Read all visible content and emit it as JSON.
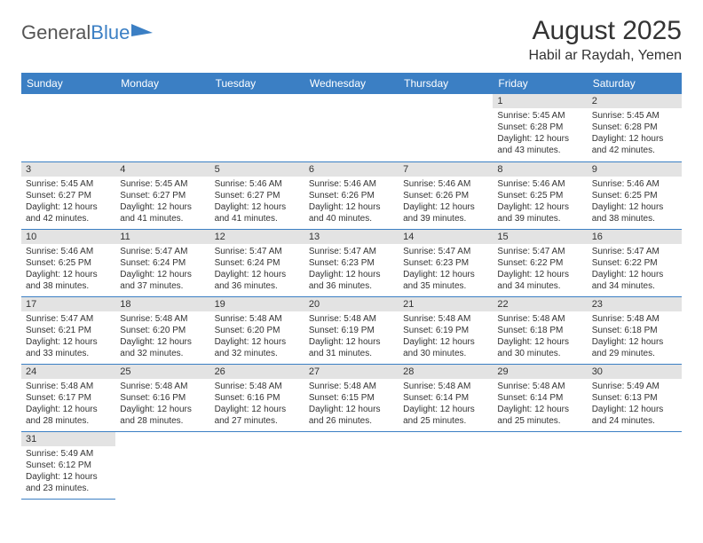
{
  "logo": {
    "text1": "General",
    "text2": "Blue"
  },
  "title": {
    "month": "August 2025",
    "location": "Habil ar Raydah, Yemen"
  },
  "colors": {
    "header_bg": "#3b7fc4",
    "header_text": "#ffffff",
    "daynum_bg": "#e3e3e3",
    "row_border": "#3b7fc4",
    "body_text": "#333333",
    "logo_accent": "#3b7fc4"
  },
  "days": [
    "Sunday",
    "Monday",
    "Tuesday",
    "Wednesday",
    "Thursday",
    "Friday",
    "Saturday"
  ],
  "weeks": [
    [
      null,
      null,
      null,
      null,
      null,
      {
        "n": "1",
        "sr": "Sunrise: 5:45 AM",
        "ss": "Sunset: 6:28 PM",
        "dl1": "Daylight: 12 hours",
        "dl2": "and 43 minutes."
      },
      {
        "n": "2",
        "sr": "Sunrise: 5:45 AM",
        "ss": "Sunset: 6:28 PM",
        "dl1": "Daylight: 12 hours",
        "dl2": "and 42 minutes."
      }
    ],
    [
      {
        "n": "3",
        "sr": "Sunrise: 5:45 AM",
        "ss": "Sunset: 6:27 PM",
        "dl1": "Daylight: 12 hours",
        "dl2": "and 42 minutes."
      },
      {
        "n": "4",
        "sr": "Sunrise: 5:45 AM",
        "ss": "Sunset: 6:27 PM",
        "dl1": "Daylight: 12 hours",
        "dl2": "and 41 minutes."
      },
      {
        "n": "5",
        "sr": "Sunrise: 5:46 AM",
        "ss": "Sunset: 6:27 PM",
        "dl1": "Daylight: 12 hours",
        "dl2": "and 41 minutes."
      },
      {
        "n": "6",
        "sr": "Sunrise: 5:46 AM",
        "ss": "Sunset: 6:26 PM",
        "dl1": "Daylight: 12 hours",
        "dl2": "and 40 minutes."
      },
      {
        "n": "7",
        "sr": "Sunrise: 5:46 AM",
        "ss": "Sunset: 6:26 PM",
        "dl1": "Daylight: 12 hours",
        "dl2": "and 39 minutes."
      },
      {
        "n": "8",
        "sr": "Sunrise: 5:46 AM",
        "ss": "Sunset: 6:25 PM",
        "dl1": "Daylight: 12 hours",
        "dl2": "and 39 minutes."
      },
      {
        "n": "9",
        "sr": "Sunrise: 5:46 AM",
        "ss": "Sunset: 6:25 PM",
        "dl1": "Daylight: 12 hours",
        "dl2": "and 38 minutes."
      }
    ],
    [
      {
        "n": "10",
        "sr": "Sunrise: 5:46 AM",
        "ss": "Sunset: 6:25 PM",
        "dl1": "Daylight: 12 hours",
        "dl2": "and 38 minutes."
      },
      {
        "n": "11",
        "sr": "Sunrise: 5:47 AM",
        "ss": "Sunset: 6:24 PM",
        "dl1": "Daylight: 12 hours",
        "dl2": "and 37 minutes."
      },
      {
        "n": "12",
        "sr": "Sunrise: 5:47 AM",
        "ss": "Sunset: 6:24 PM",
        "dl1": "Daylight: 12 hours",
        "dl2": "and 36 minutes."
      },
      {
        "n": "13",
        "sr": "Sunrise: 5:47 AM",
        "ss": "Sunset: 6:23 PM",
        "dl1": "Daylight: 12 hours",
        "dl2": "and 36 minutes."
      },
      {
        "n": "14",
        "sr": "Sunrise: 5:47 AM",
        "ss": "Sunset: 6:23 PM",
        "dl1": "Daylight: 12 hours",
        "dl2": "and 35 minutes."
      },
      {
        "n": "15",
        "sr": "Sunrise: 5:47 AM",
        "ss": "Sunset: 6:22 PM",
        "dl1": "Daylight: 12 hours",
        "dl2": "and 34 minutes."
      },
      {
        "n": "16",
        "sr": "Sunrise: 5:47 AM",
        "ss": "Sunset: 6:22 PM",
        "dl1": "Daylight: 12 hours",
        "dl2": "and 34 minutes."
      }
    ],
    [
      {
        "n": "17",
        "sr": "Sunrise: 5:47 AM",
        "ss": "Sunset: 6:21 PM",
        "dl1": "Daylight: 12 hours",
        "dl2": "and 33 minutes."
      },
      {
        "n": "18",
        "sr": "Sunrise: 5:48 AM",
        "ss": "Sunset: 6:20 PM",
        "dl1": "Daylight: 12 hours",
        "dl2": "and 32 minutes."
      },
      {
        "n": "19",
        "sr": "Sunrise: 5:48 AM",
        "ss": "Sunset: 6:20 PM",
        "dl1": "Daylight: 12 hours",
        "dl2": "and 32 minutes."
      },
      {
        "n": "20",
        "sr": "Sunrise: 5:48 AM",
        "ss": "Sunset: 6:19 PM",
        "dl1": "Daylight: 12 hours",
        "dl2": "and 31 minutes."
      },
      {
        "n": "21",
        "sr": "Sunrise: 5:48 AM",
        "ss": "Sunset: 6:19 PM",
        "dl1": "Daylight: 12 hours",
        "dl2": "and 30 minutes."
      },
      {
        "n": "22",
        "sr": "Sunrise: 5:48 AM",
        "ss": "Sunset: 6:18 PM",
        "dl1": "Daylight: 12 hours",
        "dl2": "and 30 minutes."
      },
      {
        "n": "23",
        "sr": "Sunrise: 5:48 AM",
        "ss": "Sunset: 6:18 PM",
        "dl1": "Daylight: 12 hours",
        "dl2": "and 29 minutes."
      }
    ],
    [
      {
        "n": "24",
        "sr": "Sunrise: 5:48 AM",
        "ss": "Sunset: 6:17 PM",
        "dl1": "Daylight: 12 hours",
        "dl2": "and 28 minutes."
      },
      {
        "n": "25",
        "sr": "Sunrise: 5:48 AM",
        "ss": "Sunset: 6:16 PM",
        "dl1": "Daylight: 12 hours",
        "dl2": "and 28 minutes."
      },
      {
        "n": "26",
        "sr": "Sunrise: 5:48 AM",
        "ss": "Sunset: 6:16 PM",
        "dl1": "Daylight: 12 hours",
        "dl2": "and 27 minutes."
      },
      {
        "n": "27",
        "sr": "Sunrise: 5:48 AM",
        "ss": "Sunset: 6:15 PM",
        "dl1": "Daylight: 12 hours",
        "dl2": "and 26 minutes."
      },
      {
        "n": "28",
        "sr": "Sunrise: 5:48 AM",
        "ss": "Sunset: 6:14 PM",
        "dl1": "Daylight: 12 hours",
        "dl2": "and 25 minutes."
      },
      {
        "n": "29",
        "sr": "Sunrise: 5:48 AM",
        "ss": "Sunset: 6:14 PM",
        "dl1": "Daylight: 12 hours",
        "dl2": "and 25 minutes."
      },
      {
        "n": "30",
        "sr": "Sunrise: 5:49 AM",
        "ss": "Sunset: 6:13 PM",
        "dl1": "Daylight: 12 hours",
        "dl2": "and 24 minutes."
      }
    ],
    [
      {
        "n": "31",
        "sr": "Sunrise: 5:49 AM",
        "ss": "Sunset: 6:12 PM",
        "dl1": "Daylight: 12 hours",
        "dl2": "and 23 minutes."
      },
      null,
      null,
      null,
      null,
      null,
      null
    ]
  ]
}
